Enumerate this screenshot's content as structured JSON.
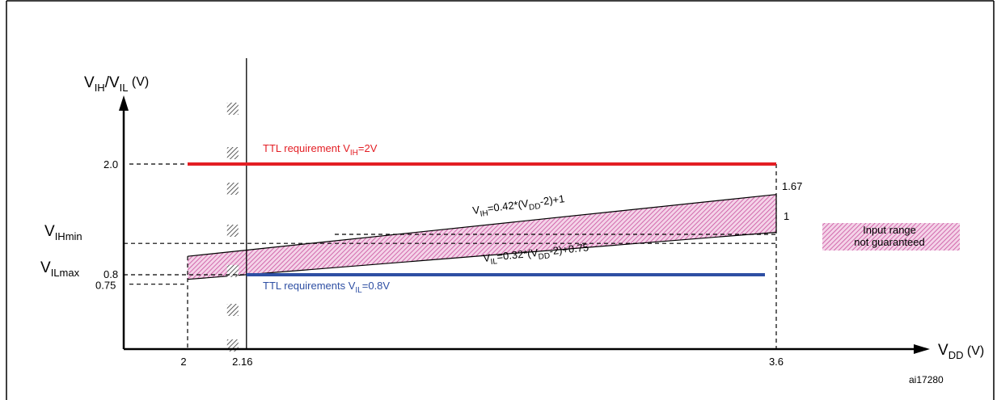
{
  "chart_data": {
    "type": "line",
    "title": "",
    "ylabel": {
      "main": "V",
      "sub1": "IH",
      "mid": "/V",
      "sub2": "IL",
      "unit": " (V)"
    },
    "xlabel": {
      "main": "V",
      "sub": "DD",
      "unit": " (V)"
    },
    "x_ticks": [
      "2",
      "2.16",
      "3.6"
    ],
    "y_ticks": [
      "2.0",
      "0.8",
      "0.75"
    ],
    "y_tick_values": [
      2.0,
      0.8,
      0.75
    ],
    "side_labels": {
      "vihmin": {
        "main": "V",
        "sub": "IHmin"
      },
      "vilmax": {
        "main": "V",
        "sub": "ILmax"
      }
    },
    "ttl_high": {
      "x": [
        2,
        3.6
      ],
      "y": 2.0,
      "color": "#e31e24",
      "label": {
        "pre": "TTL requirement  V",
        "sub": "IH",
        "post": "=2V"
      }
    },
    "ttl_low": {
      "x": [
        2.16,
        3.6
      ],
      "y": 0.8,
      "color": "#2e4fa3",
      "label": {
        "pre": "TTL requirements V",
        "sub": "IL",
        "post": "=0.8V"
      }
    },
    "vih_line": {
      "x": [
        2,
        3.6
      ],
      "y": [
        1.0,
        1.67
      ],
      "label": {
        "a": "V",
        "b": "IH",
        "c": "=0.42*(V",
        "d": "DD",
        "e": "-2)+1"
      }
    },
    "vil_line": {
      "x": [
        2,
        3.6
      ],
      "y": [
        0.75,
        1.26
      ],
      "label": {
        "a": "V",
        "b": "IL",
        "c": "=0.32*(V",
        "d": "DD",
        "e": "-2)+0.75"
      }
    },
    "end_labels": [
      "1.67",
      "1"
    ],
    "region_fill": "#c9509e",
    "legend": {
      "line1": "Input range",
      "line2": "not guaranteed"
    },
    "figure_id": "ai17280"
  }
}
